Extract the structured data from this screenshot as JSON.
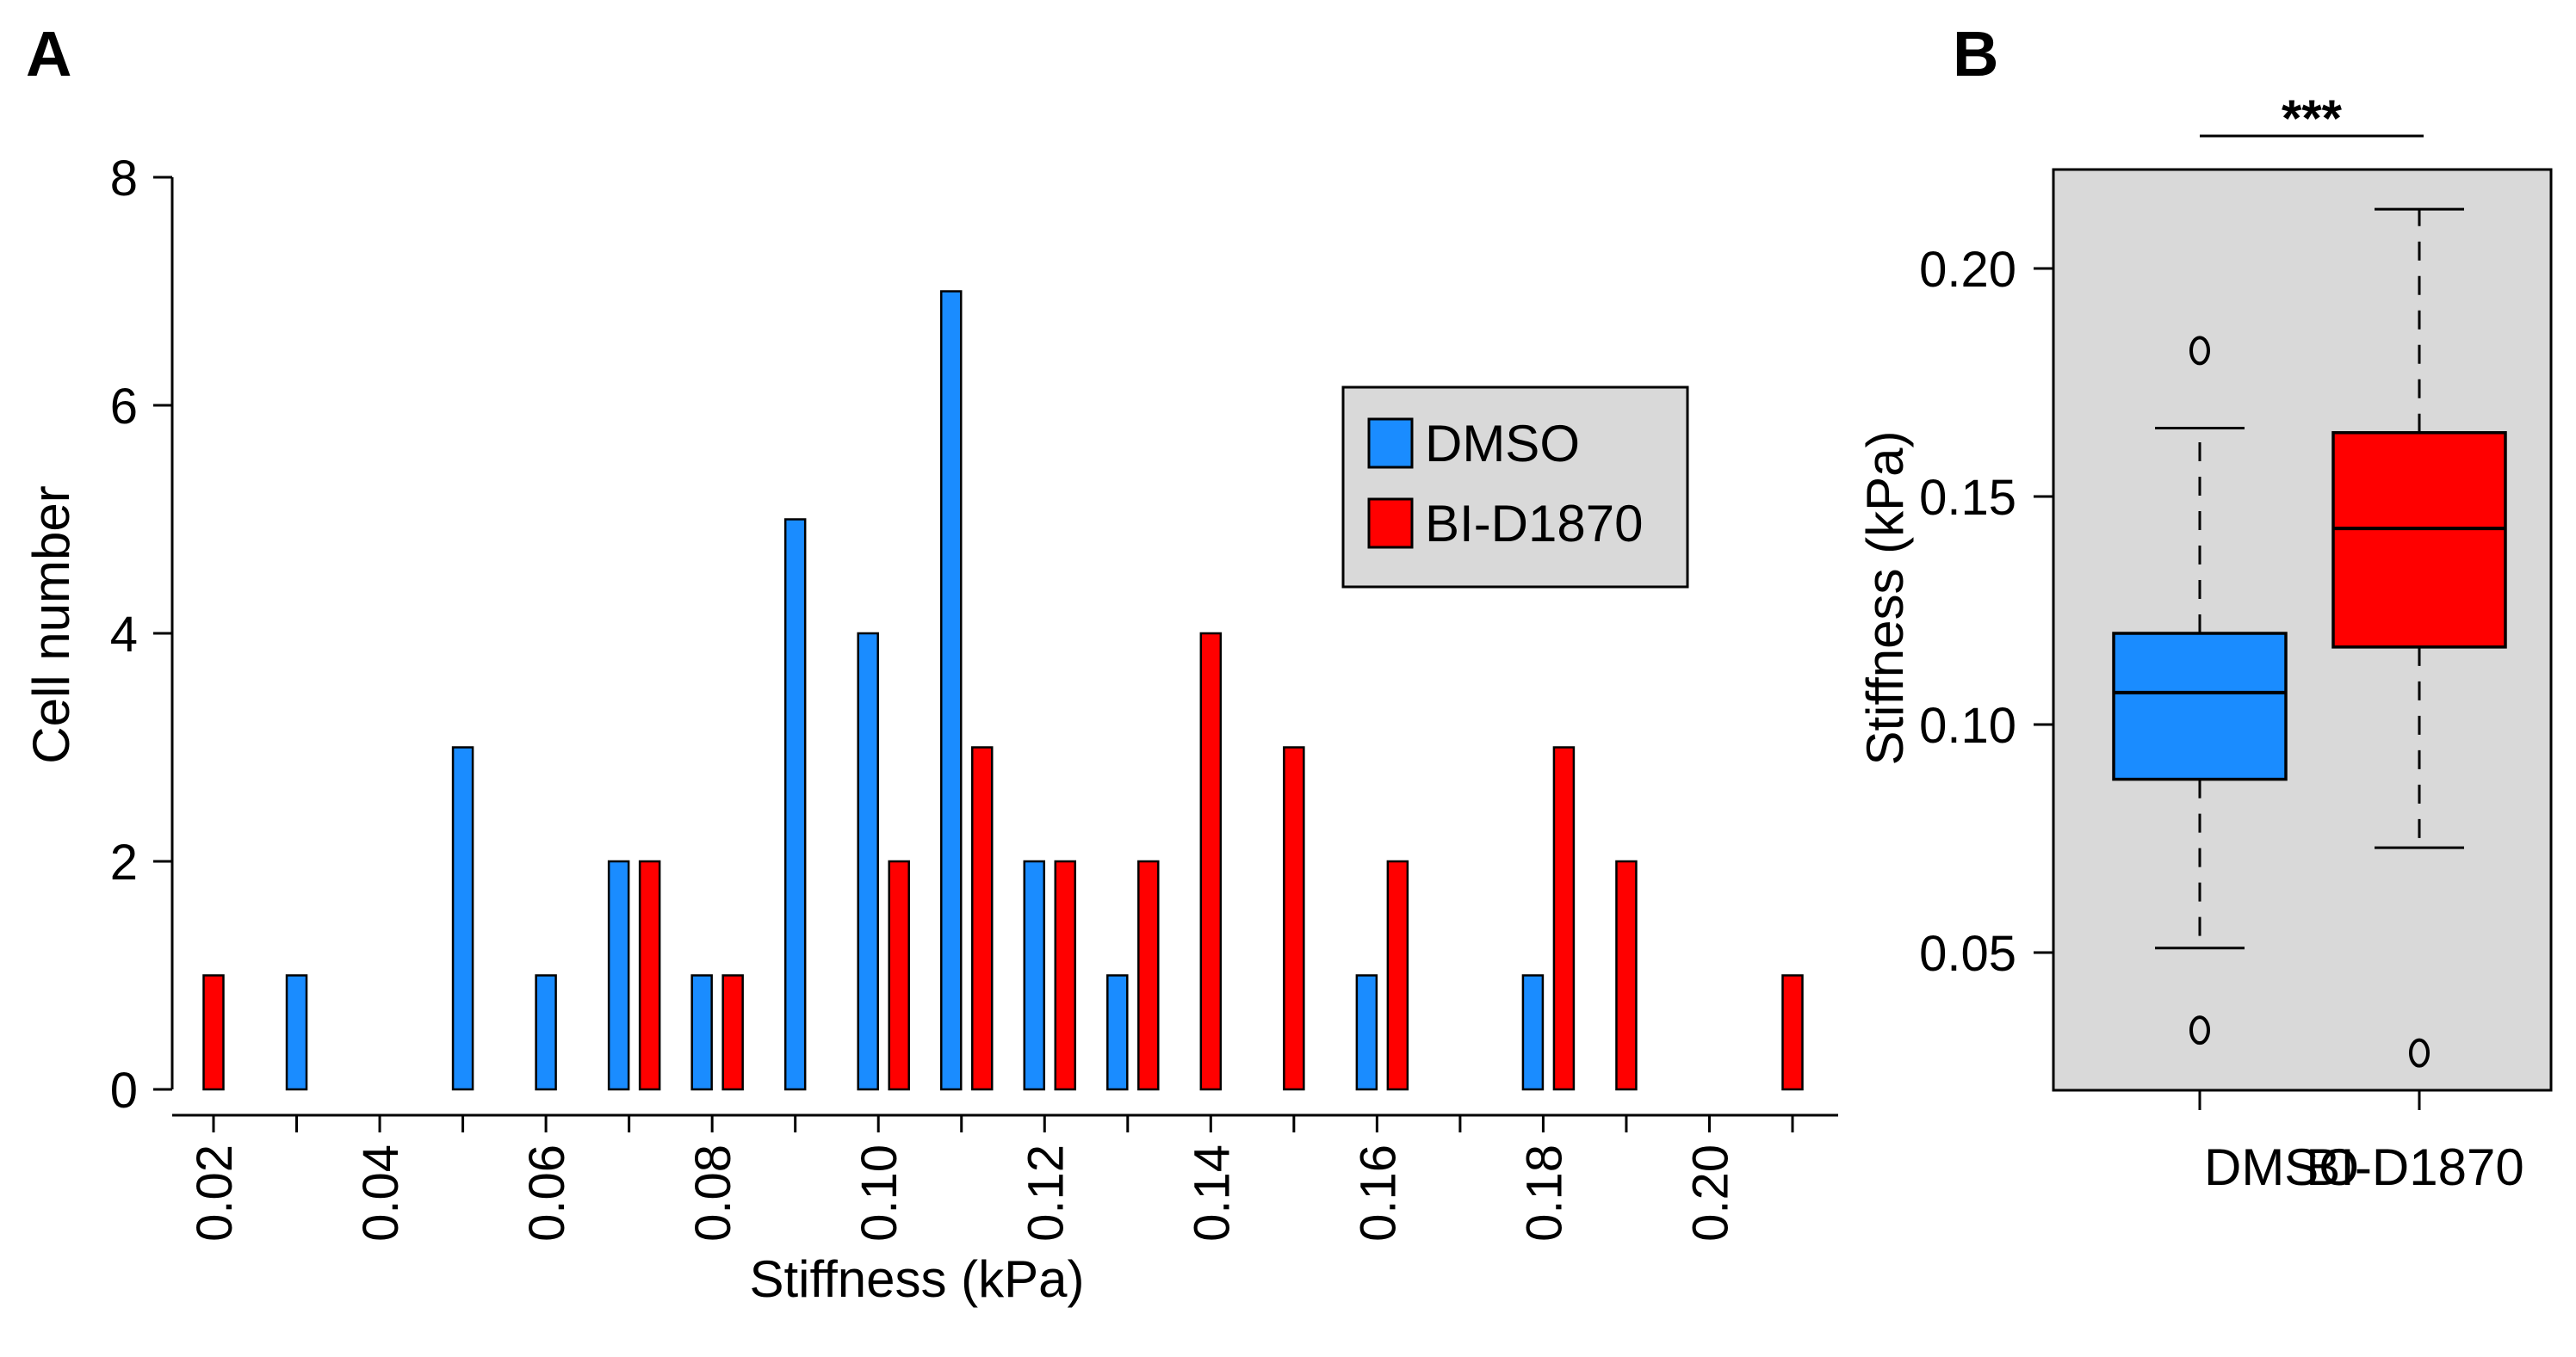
{
  "chart_data": [
    {
      "panel": "A",
      "type": "bar",
      "xlabel": "Stiffness (kPa)",
      "ylabel": "Cell number",
      "ylim": [
        0,
        8
      ],
      "y_ticks": [
        "0",
        "2",
        "4",
        "6",
        "8"
      ],
      "x_tick_labels": [
        "0.02",
        "0.04",
        "0.06",
        "0.08",
        "0.10",
        "0.12",
        "0.14",
        "0.16",
        "0.18",
        "0.20"
      ],
      "bin_centers": [
        0.02,
        0.03,
        0.04,
        0.05,
        0.06,
        0.07,
        0.08,
        0.09,
        0.1,
        0.11,
        0.12,
        0.13,
        0.14,
        0.15,
        0.16,
        0.17,
        0.18,
        0.19,
        0.2,
        0.21
      ],
      "series": [
        {
          "name": "DMSO",
          "color": "#1a8cff",
          "values": [
            0,
            1,
            0,
            3,
            1,
            2,
            1,
            5,
            4,
            7,
            2,
            1,
            0,
            0,
            1,
            0,
            1,
            0,
            0,
            0
          ]
        },
        {
          "name": "BI-D1870",
          "color": "#ff0000",
          "values": [
            1,
            0,
            0,
            0,
            0,
            2,
            1,
            0,
            2,
            3,
            2,
            2,
            4,
            3,
            2,
            0,
            3,
            2,
            0,
            1
          ]
        }
      ],
      "legend": {
        "position": "right",
        "entries": [
          "DMSO",
          "BI-D1870"
        ]
      }
    },
    {
      "panel": "B",
      "type": "box",
      "ylabel": "Stiffness (kPa)",
      "ylim": [
        0.02,
        0.225
      ],
      "y_ticks": [
        "0.05",
        "0.10",
        "0.15",
        "0.20"
      ],
      "categories": [
        "DMSO",
        "BI-D1870"
      ],
      "significance": "***",
      "boxes": [
        {
          "name": "DMSO",
          "color": "#1a8cff",
          "whisker_low": 0.051,
          "q1": 0.088,
          "median": 0.107,
          "q3": 0.12,
          "whisker_high": 0.165,
          "outliers": [
            0.033,
            0.182
          ]
        },
        {
          "name": "BI-D1870",
          "color": "#ff0000",
          "whisker_low": 0.073,
          "q1": 0.117,
          "median": 0.143,
          "q3": 0.164,
          "whisker_high": 0.213,
          "outliers": [
            0.028
          ]
        }
      ]
    }
  ]
}
